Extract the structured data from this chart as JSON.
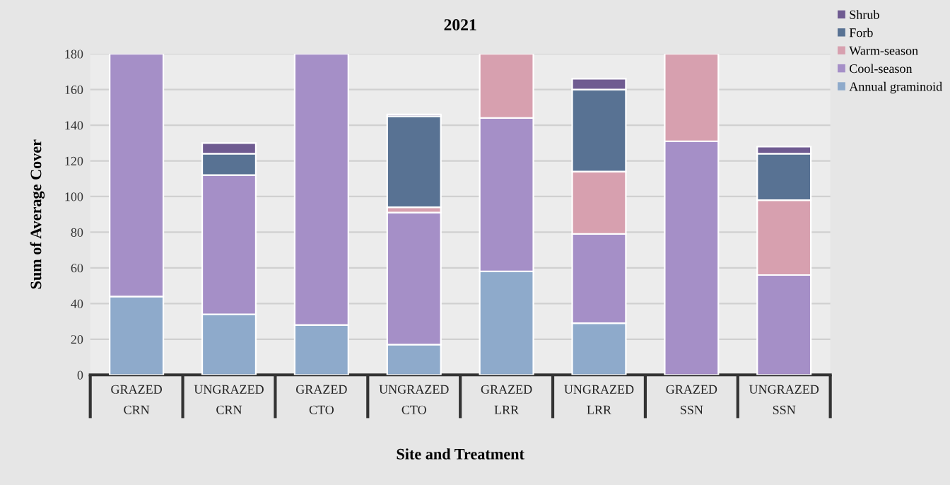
{
  "chart_data": {
    "type": "bar",
    "stacked": true,
    "title": "2021",
    "xlabel": "Site and Treatment",
    "ylabel": "Sum of Average Cover",
    "categories": [
      "GRAZED\nCRN",
      "UNGRAZED\nCRN",
      "GRAZED\nCTO",
      "UNGRAZED\nCTO",
      "GRAZED\nLRR",
      "UNGRAZED\nLRR",
      "GRAZED\nSSN",
      "UNGRAZED\nSSN"
    ],
    "series": [
      {
        "name": "Annual graminoid",
        "color": "#8eaacb",
        "values": [
          44,
          34,
          28,
          17,
          58,
          29,
          0,
          0
        ]
      },
      {
        "name": "Cool-season",
        "color": "#a58fc7",
        "values": [
          136,
          78,
          152,
          74,
          86,
          50,
          131,
          56
        ]
      },
      {
        "name": "Warm-season",
        "color": "#d7a0af",
        "values": [
          null,
          0,
          null,
          3,
          36,
          35,
          49,
          42
        ]
      },
      {
        "name": "Forb",
        "color": "#587293",
        "values": [
          null,
          12,
          null,
          51,
          null,
          46,
          null,
          26
        ]
      },
      {
        "name": "Shrub",
        "color": "#6f5b91",
        "values": [
          null,
          6,
          null,
          1,
          null,
          6,
          null,
          4
        ]
      }
    ],
    "ylim": [
      0,
      180
    ],
    "yticks": [
      0,
      20,
      40,
      60,
      80,
      100,
      120,
      140,
      160,
      180
    ],
    "grid": "y",
    "legend": "top right"
  }
}
